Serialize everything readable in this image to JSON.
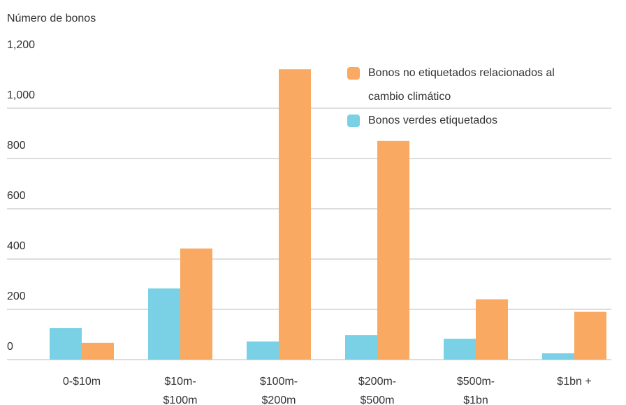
{
  "chart_data": {
    "type": "bar",
    "title": "Número de bonos",
    "categories": [
      [
        "0-$10m"
      ],
      [
        "$10m-",
        "$100m"
      ],
      [
        "$100m-",
        "$200m"
      ],
      [
        "$200m-",
        "$500m"
      ],
      [
        "$500m-",
        "$1bn"
      ],
      [
        "$1bn +"
      ]
    ],
    "series": [
      {
        "name": "Bonos verdes etiquetados",
        "color": "#7ad0e4",
        "values": [
          125,
          283,
          72,
          97,
          83,
          25
        ]
      },
      {
        "name": "Bonos no etiquetados relacionados al cambio climático",
        "color": "#f9a962",
        "values": [
          67,
          442,
          1155,
          870,
          240,
          190
        ]
      }
    ],
    "legend_order": [
      1,
      0
    ],
    "ylim": [
      0,
      1200
    ],
    "yticks": [
      0,
      200,
      400,
      600,
      800,
      {
        "value": 1000,
        "label": "1,000"
      },
      {
        "value": 1200,
        "label": "1,200"
      }
    ],
    "grid": true
  }
}
